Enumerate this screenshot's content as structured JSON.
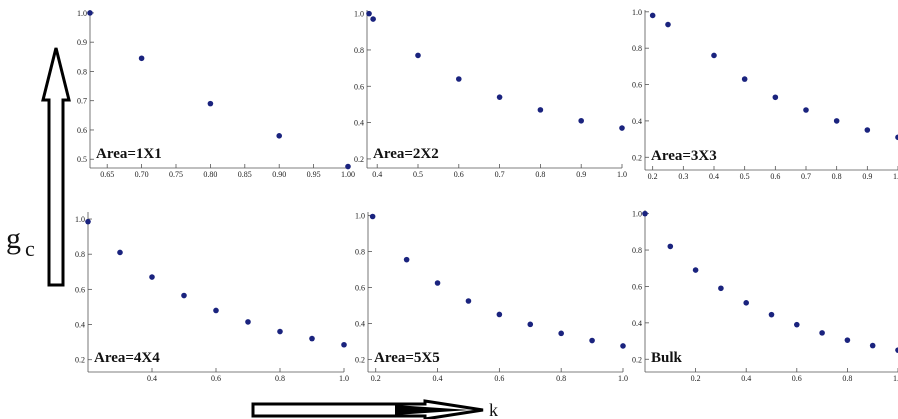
{
  "figure": {
    "y_label_main": "g",
    "y_label_sub": "c",
    "x_label": "k"
  },
  "chart_data": [
    {
      "type": "scatter",
      "label": "Area=1X1",
      "x": [
        0.625,
        0.7,
        0.8,
        0.9,
        1.0
      ],
      "y": [
        1.0,
        0.845,
        0.69,
        0.58,
        0.475
      ],
      "xlim": [
        0.625,
        1.0
      ],
      "ylim": [
        0.47,
        1.01
      ],
      "xticks": [
        0.65,
        0.7,
        0.75,
        0.8,
        0.85,
        0.9,
        0.95,
        1.0
      ],
      "xtick_labels": [
        "0.65",
        "0.70",
        "0.75",
        "0.80",
        "0.85",
        "0.90",
        "0.95",
        "1.00"
      ],
      "yticks": [
        0.5,
        0.6,
        0.7,
        0.8,
        0.9,
        1.0
      ],
      "ytick_labels": [
        "0.5",
        "0.6",
        "0.7",
        "0.8",
        "0.9",
        "1.0"
      ],
      "marker_color": "#1a237e"
    },
    {
      "type": "scatter",
      "label": "Area=2X2",
      "x": [
        0.38,
        0.39,
        0.5,
        0.6,
        0.7,
        0.8,
        0.9,
        1.0
      ],
      "y": [
        1.0,
        0.97,
        0.77,
        0.64,
        0.54,
        0.47,
        0.41,
        0.37
      ],
      "xlim": [
        0.375,
        1.0
      ],
      "ylim": [
        0.15,
        1.02
      ],
      "xticks": [
        0.4,
        0.5,
        0.6,
        0.7,
        0.8,
        0.9,
        1.0
      ],
      "xtick_labels": [
        "0.4",
        "0.5",
        "0.6",
        "0.7",
        "0.8",
        "0.9",
        "1.0"
      ],
      "yticks": [
        0.2,
        0.4,
        0.6,
        0.8,
        1.0
      ],
      "ytick_labels": [
        "0.2",
        "0.4",
        "0.6",
        "0.8",
        "1.0"
      ],
      "marker_color": "#1a237e"
    },
    {
      "type": "scatter",
      "label": "Area=3X3",
      "x": [
        0.2,
        0.25,
        0.4,
        0.5,
        0.6,
        0.7,
        0.8,
        0.9,
        1.0
      ],
      "y": [
        0.98,
        0.93,
        0.76,
        0.63,
        0.53,
        0.46,
        0.4,
        0.35,
        0.31
      ],
      "xlim": [
        0.175,
        1.0
      ],
      "ylim": [
        0.13,
        1.01
      ],
      "xticks": [
        0.2,
        0.3,
        0.4,
        0.5,
        0.6,
        0.7,
        0.8,
        0.9,
        1.0
      ],
      "xtick_labels": [
        "0.2",
        "0.3",
        "0.4",
        "0.5",
        "0.6",
        "0.7",
        "0.8",
        "0.9",
        "1.0"
      ],
      "yticks": [
        0.2,
        0.4,
        0.6,
        0.8,
        1.0
      ],
      "ytick_labels": [
        "0.2",
        "0.4",
        "0.6",
        "0.8",
        "1.0"
      ],
      "marker_color": "#1a237e"
    },
    {
      "type": "scatter",
      "label": "Area=4X4",
      "x": [
        0.2,
        0.3,
        0.4,
        0.5,
        0.6,
        0.7,
        0.8,
        0.9,
        1.0
      ],
      "y": [
        0.985,
        0.81,
        0.67,
        0.565,
        0.48,
        0.415,
        0.36,
        0.32,
        0.285
      ],
      "xlim": [
        0.2,
        1.0
      ],
      "ylim": [
        0.13,
        1.04
      ],
      "xticks": [
        0.4,
        0.6,
        0.8,
        1.0
      ],
      "xtick_labels": [
        "0.4",
        "0.6",
        "0.8",
        "1.0"
      ],
      "yticks": [
        0.2,
        0.4,
        0.6,
        0.8,
        1.0
      ],
      "ytick_labels": [
        "0.2",
        "0.4",
        "0.6",
        "0.8",
        "1.0"
      ],
      "marker_color": "#1a237e"
    },
    {
      "type": "scatter",
      "label": "Area=5X5",
      "x": [
        0.19,
        0.3,
        0.4,
        0.5,
        0.6,
        0.7,
        0.8,
        0.9,
        1.0
      ],
      "y": [
        0.995,
        0.755,
        0.625,
        0.525,
        0.45,
        0.395,
        0.345,
        0.305,
        0.275
      ],
      "xlim": [
        0.175,
        1.0
      ],
      "ylim": [
        0.13,
        1.02
      ],
      "xticks": [
        0.2,
        0.4,
        0.6,
        0.8,
        1.0
      ],
      "xtick_labels": [
        "0.2",
        "0.4",
        "0.6",
        "0.8",
        "1.0"
      ],
      "yticks": [
        0.2,
        0.4,
        0.6,
        0.8,
        1.0
      ],
      "ytick_labels": [
        "0.2",
        "0.4",
        "0.6",
        "0.8",
        "1.0"
      ],
      "marker_color": "#1a237e"
    },
    {
      "type": "scatter",
      "label": "Bulk",
      "x": [
        0.0,
        0.1,
        0.2,
        0.3,
        0.4,
        0.5,
        0.6,
        0.7,
        0.8,
        0.9,
        1.0
      ],
      "y": [
        1.0,
        0.82,
        0.69,
        0.59,
        0.51,
        0.445,
        0.39,
        0.345,
        0.305,
        0.275,
        0.25
      ],
      "xlim": [
        0.0,
        1.0
      ],
      "ylim": [
        0.13,
        1.02
      ],
      "xticks": [
        0.2,
        0.4,
        0.6,
        0.8,
        1.0
      ],
      "xtick_labels": [
        "0.2",
        "0.4",
        "0.6",
        "0.8",
        "1.0"
      ],
      "yticks": [
        0.2,
        0.4,
        0.6,
        0.8,
        1.0
      ],
      "ytick_labels": [
        "0.2",
        "0.4",
        "0.6",
        "0.8",
        "1.0"
      ],
      "marker_color": "#1a237e"
    }
  ]
}
